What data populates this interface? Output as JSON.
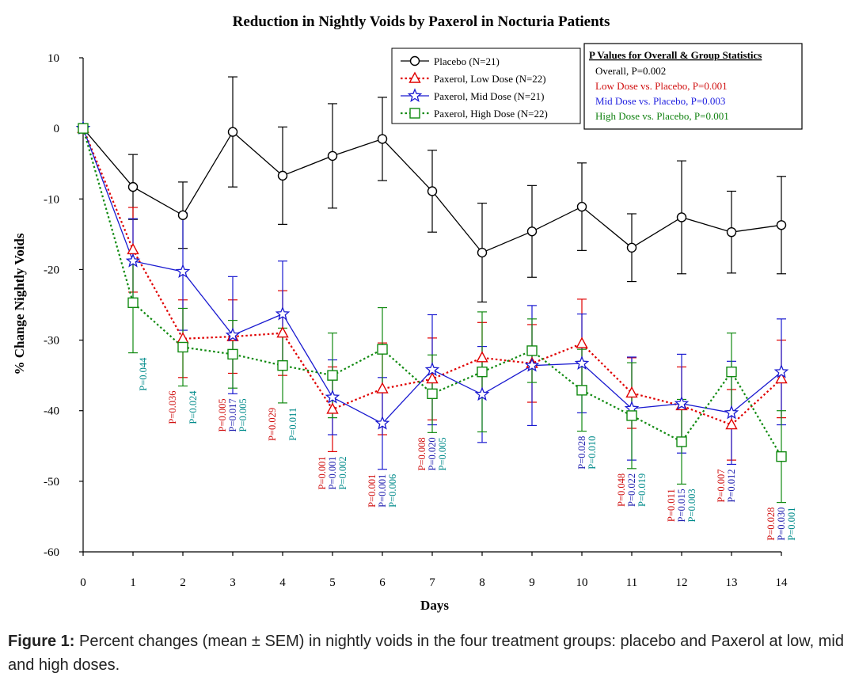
{
  "caption": {
    "label": "Figure 1:",
    "text": " Percent changes (mean ± SEM) in nightly voids in the four treatment groups: placebo and Paxerol at low, mid and high doses."
  },
  "colors": {
    "placebo": "#000000",
    "low": "#e00000",
    "mid": "#1a1ad0",
    "high": "#118a11",
    "pv_low": "#d01010",
    "pv_mid": "#2222b0",
    "pv_high": "#008b8b",
    "stats_mid": "#2020e0",
    "stats_high": "#128212"
  },
  "chart_data": {
    "type": "line",
    "title": "Reduction in Nightly Voids by Paxerol in Nocturia Patients",
    "xlabel": "Days",
    "ylabel": "% Change Nightly Voids",
    "xlim": [
      0,
      14
    ],
    "ylim": [
      -60,
      10
    ],
    "xticks": [
      0,
      1,
      2,
      3,
      4,
      5,
      6,
      7,
      8,
      9,
      10,
      11,
      12,
      13,
      14
    ],
    "yticks": [
      10,
      0,
      -10,
      -20,
      -30,
      -40,
      -50,
      -60
    ],
    "x": [
      0,
      1,
      2,
      3,
      4,
      5,
      6,
      7,
      8,
      9,
      10,
      11,
      12,
      13,
      14
    ],
    "legend_position": "top-center",
    "series": [
      {
        "name": "Placebo (N=21)",
        "key": "placebo",
        "marker": "circle",
        "dash": "solid",
        "values": [
          0,
          -8.3,
          -12.3,
          -0.5,
          -6.7,
          -3.9,
          -1.5,
          -8.9,
          -17.6,
          -14.6,
          -11.1,
          -16.9,
          -12.6,
          -14.7,
          -13.7
        ],
        "sem": [
          0,
          4.6,
          4.7,
          7.8,
          6.9,
          7.4,
          5.9,
          5.8,
          7.0,
          6.5,
          6.2,
          4.8,
          8.0,
          5.8,
          6.9
        ]
      },
      {
        "name": "Paxerol, Low Dose (N=22)",
        "key": "low",
        "marker": "triangle",
        "dash": "dot",
        "values": [
          0,
          -17.2,
          -29.8,
          -29.5,
          -29.0,
          -39.8,
          -36.9,
          -35.5,
          -32.5,
          -33.3,
          -30.5,
          -37.5,
          -39.3,
          -42.0,
          -35.5
        ],
        "sem": [
          0,
          6.0,
          5.5,
          5.2,
          6.0,
          6.0,
          6.5,
          5.8,
          5.0,
          5.5,
          6.3,
          5.0,
          5.5,
          5.0,
          5.5
        ]
      },
      {
        "name": "Paxerol, Mid Dose (N=21)",
        "key": "mid",
        "marker": "star",
        "dash": "solid",
        "values": [
          0,
          -18.8,
          -20.3,
          -29.3,
          -26.3,
          -38.1,
          -41.8,
          -34.2,
          -37.7,
          -33.6,
          -33.3,
          -39.7,
          -39.0,
          -40.3,
          -34.5
        ],
        "sem": [
          0,
          6.0,
          8.3,
          8.3,
          7.5,
          5.3,
          6.5,
          7.8,
          6.8,
          8.5,
          7.0,
          7.3,
          7.0,
          7.3,
          7.5
        ]
      },
      {
        "name": "Paxerol, High Dose (N=22)",
        "key": "high",
        "marker": "square",
        "dash": "dot",
        "values": [
          0,
          -24.7,
          -31.0,
          -32.0,
          -33.6,
          -35.0,
          -31.3,
          -37.6,
          -34.5,
          -31.5,
          -37.1,
          -40.7,
          -44.4,
          -34.5,
          -46.5
        ],
        "sem": [
          0,
          7.1,
          5.5,
          4.8,
          5.3,
          6.0,
          5.9,
          5.5,
          8.5,
          4.5,
          5.8,
          7.5,
          6.0,
          5.5,
          6.5
        ]
      }
    ],
    "p_value_annotations": [
      {
        "day": 1,
        "labels": [
          {
            "g": "high",
            "text": "P=0.044"
          }
        ]
      },
      {
        "day": 2,
        "labels": [
          {
            "g": "low",
            "text": "P=0.036"
          },
          {
            "g": "high",
            "text": "P=0.024"
          }
        ]
      },
      {
        "day": 3,
        "labels": [
          {
            "g": "low",
            "text": "P=0.005"
          },
          {
            "g": "mid",
            "text": "P=0.017"
          },
          {
            "g": "high",
            "text": "P=0.005"
          }
        ]
      },
      {
        "day": 4,
        "labels": [
          {
            "g": "low",
            "text": "P=0.029"
          },
          {
            "g": "high",
            "text": "P=0.011"
          }
        ]
      },
      {
        "day": 5,
        "labels": [
          {
            "g": "low",
            "text": "P=0.001"
          },
          {
            "g": "mid",
            "text": "P=0.001"
          },
          {
            "g": "high",
            "text": "P=0.002"
          }
        ]
      },
      {
        "day": 6,
        "labels": [
          {
            "g": "low",
            "text": "P=0.001"
          },
          {
            "g": "mid",
            "text": "P=0.001"
          },
          {
            "g": "high",
            "text": "P=0.006"
          }
        ]
      },
      {
        "day": 7,
        "labels": [
          {
            "g": "low",
            "text": "P=0.008"
          },
          {
            "g": "mid",
            "text": "P=0.020"
          },
          {
            "g": "high",
            "text": "P=0.005"
          }
        ]
      },
      {
        "day": 10,
        "labels": [
          {
            "g": "mid",
            "text": "P=0.028"
          },
          {
            "g": "high",
            "text": "P=0.010"
          }
        ]
      },
      {
        "day": 11,
        "labels": [
          {
            "g": "low",
            "text": "P=0.048"
          },
          {
            "g": "mid",
            "text": "P=0.022"
          },
          {
            "g": "high",
            "text": "P=0.019"
          }
        ]
      },
      {
        "day": 12,
        "labels": [
          {
            "g": "low",
            "text": "P=0.011"
          },
          {
            "g": "mid",
            "text": "P=0.015"
          },
          {
            "g": "high",
            "text": "P=0.003"
          }
        ]
      },
      {
        "day": 13,
        "labels": [
          {
            "g": "low",
            "text": "P=0.007"
          },
          {
            "g": "mid",
            "text": "P=0.012"
          }
        ]
      },
      {
        "day": 14,
        "labels": [
          {
            "g": "low",
            "text": "P=0.028"
          },
          {
            "g": "mid",
            "text": "P=0.030"
          },
          {
            "g": "high",
            "text": "P=0.001"
          }
        ]
      }
    ],
    "stats_box": {
      "title": "P Values for Overall & Group Statistics",
      "lines": [
        {
          "g": "placebo",
          "text": "Overall, P=0.002"
        },
        {
          "g": "pv_low",
          "text": "Low Dose vs. Placebo, P=0.001"
        },
        {
          "g": "stats_mid",
          "text": "Mid Dose vs. Placebo, P=0.003"
        },
        {
          "g": "stats_high",
          "text": "High Dose vs. Placebo, P=0.001"
        }
      ]
    }
  }
}
